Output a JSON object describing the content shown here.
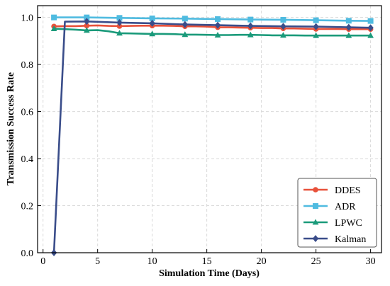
{
  "chart_data": {
    "type": "line",
    "xlabel": "Simulation Time (Days)",
    "ylabel": "Transmission Success Rate",
    "xlim": [
      -0.5,
      31
    ],
    "ylim": [
      0,
      1.05
    ],
    "x_ticks": [
      0,
      5,
      10,
      15,
      20,
      25,
      30
    ],
    "y_ticks": [
      0.0,
      0.2,
      0.4,
      0.6,
      0.8,
      1.0
    ],
    "y_tick_labels": [
      "0.0",
      "0.2",
      "0.4",
      "0.6",
      "0.8",
      "1.0"
    ],
    "grid": true,
    "legend_position": "bottom-right",
    "series": [
      {
        "name": "DDES",
        "color": "#e8513a",
        "marker": "circle",
        "x": [
          1,
          4,
          7,
          10,
          13,
          16,
          19,
          22,
          25,
          28,
          30
        ],
        "y": [
          0.962,
          0.965,
          0.963,
          0.965,
          0.962,
          0.958,
          0.956,
          0.953,
          0.951,
          0.95,
          0.95
        ],
        "line_x": [
          1,
          2,
          3,
          4,
          5,
          6,
          7,
          8,
          9,
          10,
          11,
          12,
          13,
          14,
          15,
          16,
          17,
          18,
          19,
          20,
          21,
          22,
          23,
          24,
          25,
          26,
          27,
          28,
          29,
          30
        ],
        "line_y": [
          0.962,
          0.963,
          0.963,
          0.965,
          0.966,
          0.964,
          0.963,
          0.964,
          0.965,
          0.965,
          0.965,
          0.964,
          0.962,
          0.962,
          0.961,
          0.958,
          0.958,
          0.957,
          0.956,
          0.955,
          0.955,
          0.953,
          0.953,
          0.952,
          0.951,
          0.951,
          0.951,
          0.95,
          0.95,
          0.95
        ]
      },
      {
        "name": "ADR",
        "color": "#4fbbe0",
        "marker": "square",
        "x": [
          1,
          4,
          7,
          10,
          13,
          16,
          19,
          22,
          25,
          28,
          30
        ],
        "y": [
          1.0,
          1.0,
          0.998,
          0.996,
          0.995,
          0.993,
          0.991,
          0.99,
          0.988,
          0.986,
          0.985
        ],
        "line_x": [
          1,
          4,
          7,
          10,
          13,
          16,
          19,
          22,
          25,
          28,
          30
        ],
        "line_y": [
          1.0,
          1.0,
          0.998,
          0.996,
          0.995,
          0.993,
          0.991,
          0.99,
          0.988,
          0.986,
          0.985
        ]
      },
      {
        "name": "LPWC",
        "color": "#1a9a7a",
        "marker": "triangle",
        "x": [
          1,
          4,
          7,
          10,
          13,
          16,
          19,
          22,
          25,
          28,
          30
        ],
        "y": [
          0.952,
          0.945,
          0.933,
          0.93,
          0.927,
          0.925,
          0.926,
          0.924,
          0.923,
          0.923,
          0.923
        ],
        "line_x": [
          1,
          2,
          3,
          4,
          5,
          6,
          7,
          8,
          9,
          10,
          11,
          12,
          13,
          14,
          15,
          16,
          17,
          18,
          19,
          20,
          21,
          22,
          23,
          24,
          25,
          26,
          27,
          28,
          29,
          30
        ],
        "line_y": [
          0.952,
          0.95,
          0.948,
          0.945,
          0.946,
          0.941,
          0.933,
          0.932,
          0.931,
          0.93,
          0.93,
          0.929,
          0.927,
          0.927,
          0.926,
          0.925,
          0.925,
          0.926,
          0.926,
          0.925,
          0.924,
          0.924,
          0.924,
          0.923,
          0.923,
          0.923,
          0.923,
          0.923,
          0.923,
          0.923
        ]
      },
      {
        "name": "Kalman",
        "color": "#3a4d8a",
        "marker": "diamond",
        "x": [
          1,
          4,
          7,
          10,
          13,
          16,
          19,
          22,
          25,
          28,
          30
        ],
        "y": [
          0.0,
          0.983,
          0.978,
          0.975,
          0.97,
          0.967,
          0.964,
          0.962,
          0.961,
          0.958,
          0.956
        ],
        "line_x": [
          1,
          2,
          4,
          7,
          10,
          13,
          16,
          19,
          22,
          25,
          28,
          30
        ],
        "line_y": [
          0.0,
          0.982,
          0.983,
          0.978,
          0.975,
          0.97,
          0.967,
          0.964,
          0.962,
          0.961,
          0.958,
          0.956
        ]
      }
    ]
  }
}
